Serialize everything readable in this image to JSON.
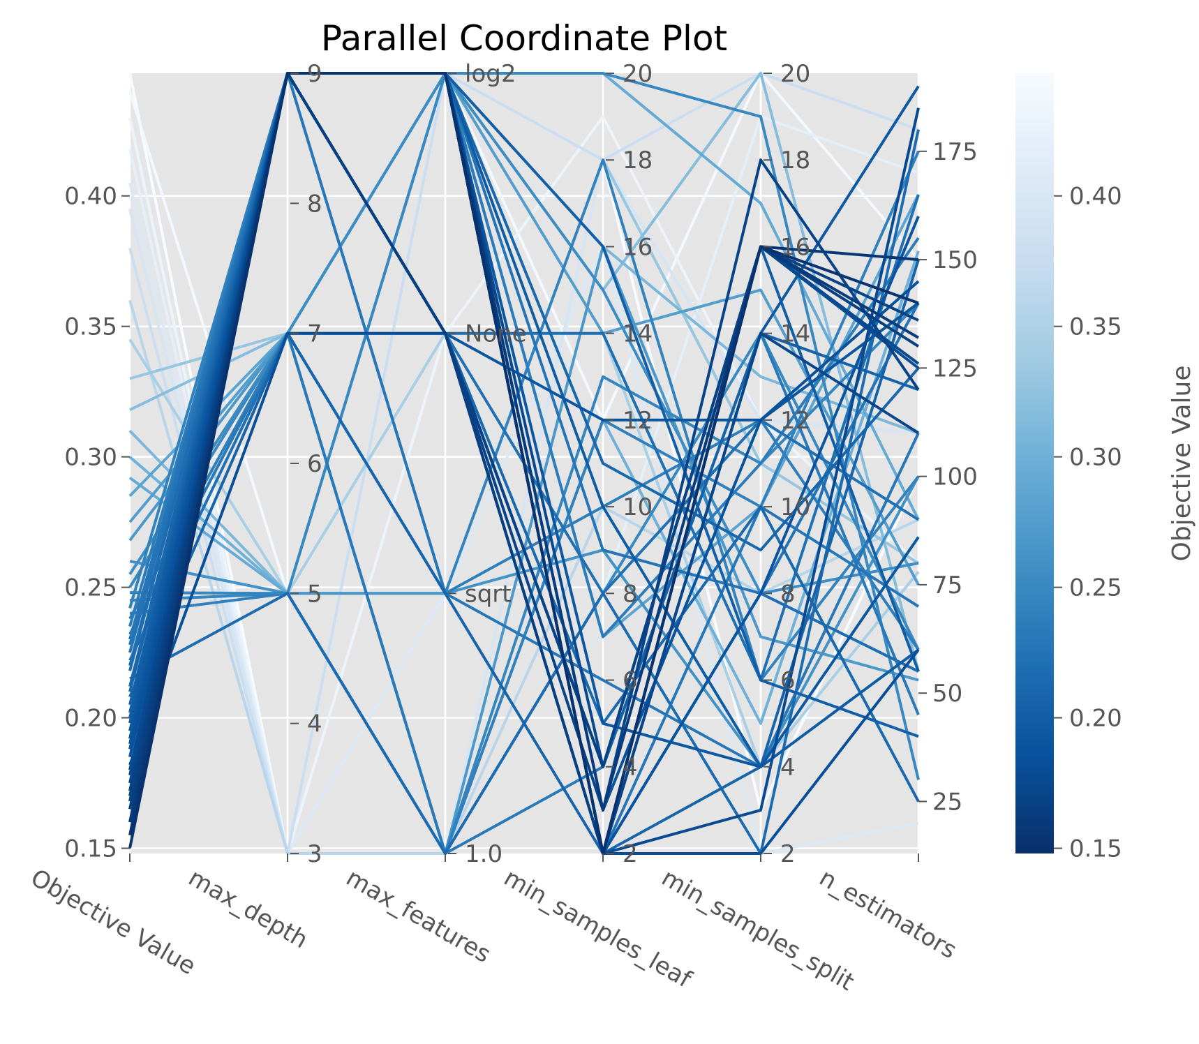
{
  "chart_data": {
    "type": "parallel_coordinates",
    "title": "Parallel Coordinate Plot",
    "colorbar": {
      "label": "Objective Value",
      "colormap": "Blues_r",
      "range": [
        0.148,
        0.447
      ],
      "tick_values": [
        0.15,
        0.2,
        0.25,
        0.3,
        0.35,
        0.4
      ],
      "tick_labels": [
        "0.15",
        "0.20",
        "0.25",
        "0.30",
        "0.35",
        "0.40"
      ]
    },
    "axes": [
      {
        "name": "Objective Value",
        "kind": "numeric",
        "range": [
          0.148,
          0.447
        ],
        "tick_values": [
          0.15,
          0.2,
          0.25,
          0.3,
          0.35,
          0.4
        ],
        "tick_labels": [
          "0.15",
          "0.20",
          "0.25",
          "0.30",
          "0.35",
          "0.40"
        ]
      },
      {
        "name": "max_depth",
        "kind": "numeric",
        "range": [
          3,
          9
        ],
        "tick_values": [
          3,
          4,
          5,
          6,
          7,
          8,
          9
        ],
        "tick_labels": [
          "3",
          "4",
          "5",
          "6",
          "7",
          "8",
          "9"
        ]
      },
      {
        "name": "max_features",
        "kind": "categorical",
        "categories": [
          "1.0",
          "sqrt",
          "None",
          "log2"
        ],
        "tick_labels": [
          "1.0",
          "sqrt",
          "None",
          "log2"
        ]
      },
      {
        "name": "min_samples_leaf",
        "kind": "numeric",
        "range": [
          2,
          20
        ],
        "tick_values": [
          2,
          4,
          6,
          8,
          10,
          12,
          14,
          16,
          18,
          20
        ],
        "tick_labels": [
          "2",
          "4",
          "6",
          "8",
          "10",
          "12",
          "14",
          "16",
          "18",
          "20"
        ]
      },
      {
        "name": "min_samples_split",
        "kind": "numeric",
        "range": [
          2,
          20
        ],
        "tick_values": [
          2,
          4,
          6,
          8,
          10,
          12,
          14,
          16,
          18,
          20
        ],
        "tick_labels": [
          "2",
          "4",
          "6",
          "8",
          "10",
          "12",
          "14",
          "16",
          "18",
          "20"
        ]
      },
      {
        "name": "n_estimators",
        "kind": "numeric",
        "range": [
          13,
          193
        ],
        "tick_values": [
          25,
          50,
          75,
          100,
          125,
          150,
          175
        ],
        "tick_labels": [
          "25",
          "50",
          "75",
          "100",
          "125",
          "150",
          "175"
        ]
      }
    ],
    "trials": [
      [
        0.15,
        9,
        "log2",
        2,
        16,
        140
      ],
      [
        0.155,
        9,
        "log2",
        2,
        16,
        150
      ],
      [
        0.16,
        9,
        "log2",
        3,
        16,
        132
      ],
      [
        0.165,
        9,
        "None",
        2,
        16,
        130
      ],
      [
        0.168,
        9,
        "None",
        4,
        16,
        136
      ],
      [
        0.17,
        9,
        "None",
        3,
        18,
        120
      ],
      [
        0.172,
        9,
        "log2",
        2,
        14,
        110
      ],
      [
        0.175,
        9,
        "log2",
        4,
        16,
        126
      ],
      [
        0.178,
        9,
        "log2",
        2,
        3,
        185
      ],
      [
        0.18,
        9,
        "None",
        4,
        16,
        125
      ],
      [
        0.182,
        7,
        "None",
        2,
        2,
        60
      ],
      [
        0.185,
        9,
        "log2",
        3,
        12,
        145
      ],
      [
        0.188,
        9,
        "log2",
        2,
        8,
        160
      ],
      [
        0.19,
        9,
        "None",
        12,
        12,
        140
      ],
      [
        0.192,
        9,
        "log2",
        5,
        4,
        86
      ],
      [
        0.195,
        9,
        "log2",
        2,
        14,
        190
      ],
      [
        0.198,
        9,
        "log2",
        10,
        4,
        60
      ],
      [
        0.2,
        9,
        "None",
        2,
        16,
        55
      ],
      [
        0.202,
        9,
        "log2",
        16,
        6,
        40
      ],
      [
        0.205,
        9,
        "None",
        4,
        14,
        120
      ],
      [
        0.208,
        7,
        "sqrt",
        2,
        4,
        150
      ],
      [
        0.21,
        9,
        "log2",
        11,
        9,
        125
      ],
      [
        0.212,
        9,
        "None",
        5,
        10,
        25
      ],
      [
        0.215,
        5,
        "1.0",
        8,
        2,
        180
      ],
      [
        0.218,
        9,
        "log2",
        2,
        8,
        55
      ],
      [
        0.22,
        9,
        "None",
        14,
        6,
        165
      ],
      [
        0.222,
        7,
        "None",
        8,
        12,
        90
      ],
      [
        0.225,
        9,
        "log2",
        9,
        8,
        140
      ],
      [
        0.228,
        9,
        "log2",
        2,
        10,
        70
      ],
      [
        0.23,
        9,
        "sqrt",
        6,
        4,
        110
      ],
      [
        0.232,
        7,
        "1.0",
        4,
        14,
        45
      ],
      [
        0.235,
        9,
        "log2",
        7,
        11,
        155
      ],
      [
        0.238,
        7,
        "sqrt",
        10,
        12,
        60
      ],
      [
        0.24,
        5,
        "1.0",
        12,
        10,
        175
      ],
      [
        0.242,
        9,
        "sqrt",
        18,
        6,
        100
      ],
      [
        0.245,
        5,
        "1.0",
        13,
        11,
        140
      ],
      [
        0.248,
        5,
        "log2",
        20,
        19,
        30
      ],
      [
        0.25,
        7,
        "1.0",
        8,
        14,
        60
      ],
      [
        0.255,
        7,
        "log2",
        15,
        8,
        80
      ],
      [
        0.26,
        5,
        "sqrt",
        9,
        4,
        100
      ],
      [
        0.268,
        7,
        "1.0",
        16,
        7,
        53
      ],
      [
        0.275,
        7,
        "log2",
        14,
        15,
        75
      ],
      [
        0.285,
        7,
        "log2",
        7,
        10,
        165
      ],
      [
        0.292,
        5,
        "log2",
        20,
        17,
        90
      ],
      [
        0.3,
        5,
        "1.0",
        12,
        5,
        152
      ],
      [
        0.31,
        5,
        "log2",
        16,
        13,
        110
      ],
      [
        0.318,
        7,
        "log2",
        15,
        20,
        55
      ],
      [
        0.33,
        7,
        "sqrt",
        18,
        11,
        80
      ],
      [
        0.345,
        5,
        "None",
        14,
        4,
        78
      ],
      [
        0.36,
        3,
        "1.0",
        10,
        8,
        90
      ],
      [
        0.38,
        3,
        "log2",
        18,
        20,
        180
      ],
      [
        0.395,
        3,
        "1.0",
        18,
        12,
        110
      ],
      [
        0.405,
        3,
        "sqrt",
        16,
        2,
        20
      ],
      [
        0.418,
        3,
        "1.0",
        8,
        19,
        170
      ],
      [
        0.43,
        3,
        "None",
        19,
        12,
        80
      ],
      [
        0.44,
        5,
        "log2",
        12,
        20,
        150
      ],
      [
        0.447,
        3,
        "sqrt",
        18,
        3,
        100
      ]
    ]
  }
}
